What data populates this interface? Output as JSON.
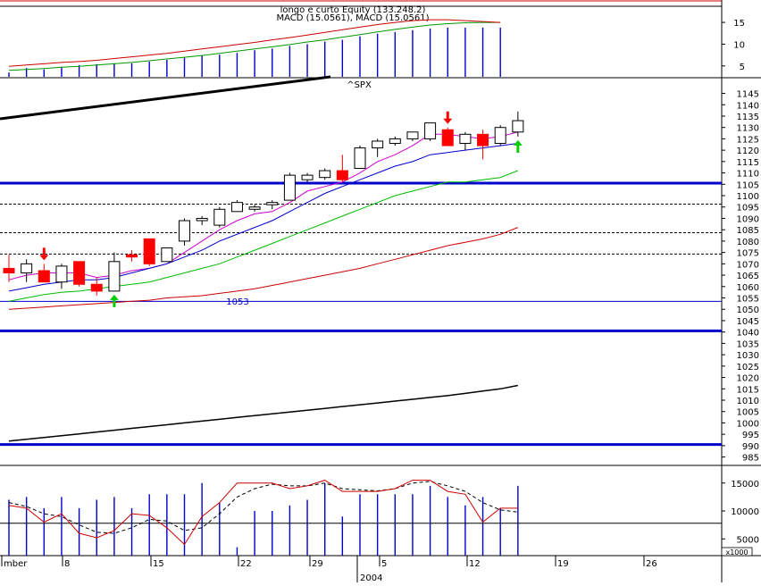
{
  "chart_data": [
    {
      "type": "line",
      "panel": "indicator",
      "title": "longo e curto Equity (133.248.2)",
      "subtitle": "MACD (15.0561), MACD (15.0561)",
      "y_ticks": [
        "15",
        "10",
        "5"
      ],
      "ylim": [
        2.5,
        18.5
      ],
      "series": [
        {
          "name": "MACD",
          "color": "#cc0000",
          "values": [
            4.9,
            5.2,
            5.5,
            5.8,
            6.0,
            6.3,
            6.7,
            7.1,
            7.5,
            7.9,
            8.4,
            8.9,
            9.4,
            9.9,
            10.4,
            11.0,
            11.5,
            12.1,
            12.7,
            13.3,
            13.9,
            14.5,
            15.0,
            15.4,
            15.6,
            15.6,
            15.4,
            15.2,
            15.0
          ]
        },
        {
          "name": "Signal",
          "color": "#009900",
          "values": [
            4.0,
            4.2,
            4.4,
            4.7,
            4.9,
            5.2,
            5.5,
            5.8,
            6.2,
            6.6,
            7.0,
            7.4,
            7.9,
            8.4,
            8.9,
            9.4,
            9.9,
            10.5,
            11.0,
            11.6,
            12.2,
            12.8,
            13.4,
            13.9,
            14.4,
            14.7,
            14.9,
            15.0,
            15.0
          ]
        },
        {
          "name": "Histogram",
          "color": "#0000cc",
          "style": "bars",
          "values": [
            3.5,
            4.5,
            4.2,
            4.8,
            5.2,
            5.4,
            5.6,
            5.6,
            6.0,
            6.4,
            7.0,
            7.4,
            7.6,
            8.0,
            8.6,
            9.0,
            9.6,
            10.0,
            10.6,
            11.0,
            11.8,
            12.4,
            12.8,
            13.2,
            13.6,
            13.8,
            13.8,
            13.8,
            13.8
          ]
        }
      ]
    },
    {
      "type": "candlestick",
      "panel": "price",
      "title": "^SPX",
      "y_ticks": [
        "1145",
        "1140",
        "1135",
        "1130",
        "1125",
        "1120",
        "1115",
        "1110",
        "1105",
        "1100",
        "1095",
        "1090",
        "1085",
        "1080",
        "1075",
        "1070",
        "1065",
        "1060",
        "1055",
        "1050",
        "1045",
        "1040",
        "1035",
        "1030",
        "1025",
        "1020",
        "1015",
        "1010",
        "1005",
        "1000",
        "995",
        "990",
        "985"
      ],
      "ylim": [
        981.7,
        1151.5
      ],
      "x_ticks": [
        "mber",
        "8",
        "15",
        "22",
        "29",
        "5",
        "12",
        "19",
        "26"
      ],
      "x_group_label": "2004",
      "annotation": "1053",
      "horizontal_levels": [
        {
          "value": 1105.5,
          "color": "#0000cc",
          "style": "solid-thick"
        },
        {
          "value": 1040.5,
          "color": "#0000cc",
          "style": "solid-thick"
        },
        {
          "value": 990.5,
          "color": "#0000cc",
          "style": "solid-thick"
        },
        {
          "value": 1053.5,
          "color": "#0000cc",
          "style": "solid-thin"
        },
        {
          "value": 1096.3,
          "color": "#000000",
          "style": "dotted"
        },
        {
          "value": 1083.7,
          "color": "#000000",
          "style": "dotted"
        },
        {
          "value": 1074.3,
          "color": "#000000",
          "style": "dotted"
        }
      ],
      "candles": [
        {
          "o": 1068,
          "h": 1074,
          "l": 1062,
          "c": 1066
        },
        {
          "o": 1066,
          "h": 1072,
          "l": 1062,
          "c": 1070
        },
        {
          "o": 1067,
          "h": 1070,
          "l": 1062,
          "c": 1062
        },
        {
          "o": 1062,
          "h": 1070,
          "l": 1059,
          "c": 1069
        },
        {
          "o": 1071,
          "h": 1071,
          "l": 1060,
          "c": 1061
        },
        {
          "o": 1061,
          "h": 1064,
          "l": 1056,
          "c": 1058
        },
        {
          "o": 1058,
          "h": 1075,
          "l": 1058,
          "c": 1071
        },
        {
          "o": 1074,
          "h": 1076,
          "l": 1071,
          "c": 1073
        },
        {
          "o": 1081,
          "h": 1081,
          "l": 1069,
          "c": 1070
        },
        {
          "o": 1071,
          "h": 1076,
          "l": 1071,
          "c": 1077
        },
        {
          "o": 1080,
          "h": 1090,
          "l": 1078,
          "c": 1089
        },
        {
          "o": 1089,
          "h": 1091,
          "l": 1087,
          "c": 1090
        },
        {
          "o": 1087,
          "h": 1095,
          "l": 1086,
          "c": 1094
        },
        {
          "o": 1093,
          "h": 1098,
          "l": 1093,
          "c": 1097
        },
        {
          "o": 1094,
          "h": 1096,
          "l": 1093,
          "c": 1095
        },
        {
          "o": 1096,
          "h": 1098,
          "l": 1094,
          "c": 1097
        },
        {
          "o": 1098,
          "h": 1110,
          "l": 1098,
          "c": 1109
        },
        {
          "o": 1107,
          "h": 1110,
          "l": 1106,
          "c": 1109
        },
        {
          "o": 1108,
          "h": 1112,
          "l": 1107,
          "c": 1111
        },
        {
          "o": 1111,
          "h": 1118,
          "l": 1106,
          "c": 1107
        },
        {
          "o": 1112,
          "h": 1122,
          "l": 1112,
          "c": 1121
        },
        {
          "o": 1121,
          "h": 1125,
          "l": 1117,
          "c": 1124
        },
        {
          "o": 1123,
          "h": 1126,
          "l": 1122,
          "c": 1125
        },
        {
          "o": 1125,
          "h": 1128,
          "l": 1124,
          "c": 1128
        },
        {
          "o": 1125,
          "h": 1132,
          "l": 1124,
          "c": 1132
        },
        {
          "o": 1129,
          "h": 1130,
          "l": 1122,
          "c": 1122
        },
        {
          "o": 1123,
          "h": 1128,
          "l": 1120,
          "c": 1127
        },
        {
          "o": 1127,
          "h": 1129,
          "l": 1116,
          "c": 1122
        },
        {
          "o": 1123,
          "h": 1131,
          "l": 1122,
          "c": 1130
        },
        {
          "o": 1128,
          "h": 1137,
          "l": 1126,
          "c": 1133
        }
      ],
      "series": [
        {
          "name": "MA short",
          "color": "#cc00cc",
          "values": [
            1063,
            1065,
            1066,
            1066,
            1066,
            1064,
            1065,
            1067,
            1068,
            1070,
            1075,
            1080,
            1085,
            1089,
            1092,
            1093,
            1097,
            1102,
            1104,
            1106,
            1110,
            1115,
            1118,
            1122,
            1127,
            1127,
            1126,
            1125,
            1126,
            1128
          ]
        },
        {
          "name": "MA medium",
          "color": "#0000cc",
          "values": [
            1058,
            1059.5,
            1061,
            1062,
            1063,
            1063,
            1064,
            1066,
            1068,
            1070,
            1073,
            1076,
            1080,
            1083,
            1086,
            1089,
            1093,
            1097,
            1101,
            1104,
            1107,
            1110,
            1113,
            1115,
            1118,
            1119,
            1120,
            1121,
            1122,
            1123
          ]
        },
        {
          "name": "MA long",
          "color": "#00bb00",
          "values": [
            1053.5,
            1055,
            1056.5,
            1057.5,
            1058,
            1059,
            1060,
            1061,
            1062,
            1064,
            1066,
            1068,
            1070,
            1073,
            1076,
            1079,
            1082,
            1085,
            1088,
            1091,
            1094,
            1097,
            1100,
            1102,
            1104,
            1106,
            1106,
            1107,
            1108,
            1111
          ]
        },
        {
          "name": "MA longest",
          "color": "#cc0000",
          "values": [
            1050,
            1050.5,
            1051,
            1051.5,
            1052,
            1052.5,
            1053,
            1053.5,
            1054,
            1055,
            1055.5,
            1056,
            1057,
            1058,
            1059,
            1060.5,
            1062,
            1063.5,
            1065,
            1066.5,
            1068,
            1070,
            1072,
            1074,
            1076,
            1078,
            1079.5,
            1081,
            1083,
            1086
          ]
        },
        {
          "name": "Trend lower",
          "color": "#000000",
          "values": [
            992,
            992.8,
            993.6,
            994.4,
            995.2,
            996,
            996.8,
            997.6,
            998.4,
            999.2,
            1000,
            1000.8,
            1001.6,
            1002.4,
            1003.2,
            1004,
            1004.8,
            1005.6,
            1006.4,
            1007.2,
            1008,
            1008.8,
            1009.6,
            1010.4,
            1011.2,
            1012,
            1013,
            1014,
            1015,
            1016.5
          ]
        }
      ],
      "signals": [
        {
          "index": 2,
          "type": "sell",
          "color": "#ff0000"
        },
        {
          "index": 6,
          "type": "buy",
          "color": "#00cc00"
        },
        {
          "index": 25,
          "type": "sell",
          "color": "#ff0000"
        },
        {
          "index": 29,
          "type": "buy",
          "color": "#00cc00"
        }
      ]
    },
    {
      "type": "line",
      "panel": "volume",
      "y_ticks": [
        "15000",
        "10000",
        "5000"
      ],
      "y_unit": "x1000",
      "ylim": [
        2000,
        18000
      ],
      "series": [
        {
          "name": "Volume",
          "color": "#0000cc",
          "style": "bars",
          "values": [
            12000,
            12500,
            10500,
            12500,
            10500,
            12000,
            12500,
            10500,
            13000,
            13000,
            13000,
            15000,
            11500,
            3500,
            10000,
            10000,
            11000,
            12000,
            15000,
            9000,
            13000,
            13000,
            13000,
            13000,
            14500,
            12500,
            11000,
            12500,
            10500,
            14500
          ]
        },
        {
          "name": "Line",
          "color": "#cc0000",
          "values": [
            11000,
            10500,
            8000,
            9500,
            6000,
            5200,
            6500,
            9500,
            9200,
            7000,
            4000,
            9000,
            11500,
            15000,
            15000,
            15000,
            14000,
            14500,
            15500,
            13500,
            13500,
            13500,
            14000,
            15500,
            15500,
            13500,
            13000,
            8000,
            10500,
            10500
          ]
        },
        {
          "name": "Signal",
          "color": "#000000",
          "style": "dashed",
          "values": [
            11500,
            10800,
            9500,
            9000,
            7500,
            6200,
            6000,
            7000,
            8500,
            8200,
            6500,
            7000,
            9500,
            12500,
            14000,
            14800,
            14500,
            14500,
            15000,
            14000,
            13800,
            13600,
            14000,
            15000,
            15300,
            14500,
            13500,
            11500,
            10200,
            9800
          ]
        }
      ],
      "horizontal_levels": [
        {
          "value": 7800,
          "color": "#000000",
          "style": "solid-thin"
        }
      ]
    }
  ]
}
